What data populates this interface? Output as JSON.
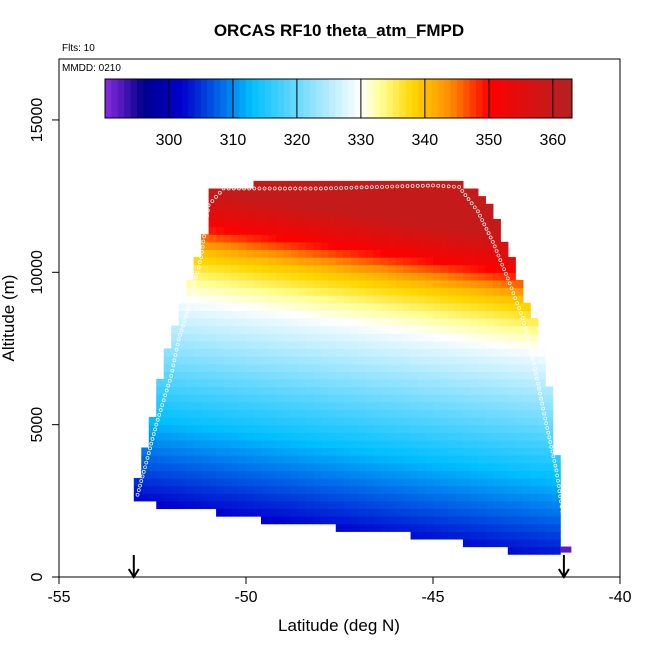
{
  "chart_data": {
    "type": "heatmap",
    "title": "ORCAS RF10 theta_atm_FMPD",
    "xlabel": "Latitude (deg N)",
    "ylabel": "Altitude (m)",
    "xlim": [
      -55,
      -40
    ],
    "ylim": [
      0,
      17000
    ],
    "x_ticks": [
      -55,
      -50,
      -45,
      -40
    ],
    "y_ticks": [
      0,
      5000,
      10000,
      15000
    ],
    "annotations": {
      "flights": "Flts: 10",
      "date": "MMDD: 0210"
    },
    "colorbar": {
      "range": [
        290,
        363
      ],
      "ticks": [
        300,
        310,
        320,
        330,
        340,
        350,
        360
      ],
      "colors": [
        "#8a2be2",
        "#00008b",
        "#0000cd",
        "#00bfff",
        "#ffffff",
        "#ffff99",
        "#ffd700",
        "#ff8c00",
        "#ff0000",
        "#b22222"
      ],
      "color_stops": [
        290,
        296,
        302,
        313,
        330,
        333,
        338,
        344,
        350,
        363
      ]
    },
    "curtain": {
      "theta_profile_altitude_m": [
        0,
        1000,
        2000,
        3000,
        4000,
        5000,
        6000,
        7000,
        8000,
        9000,
        10000,
        11000,
        12000,
        13000
      ],
      "theta_profile_K": [
        292,
        297,
        300,
        304,
        308,
        312,
        316,
        320,
        324,
        328,
        333,
        340,
        352,
        360
      ],
      "tilt_m_per_deg_lat": 180,
      "top_edge": {
        "lat": [
          -51.1,
          -50.9,
          -49.2,
          -44.4,
          -43.6,
          -43.2,
          -42.9,
          -42.7,
          -42.3,
          -42.0,
          -41.8,
          -41.7,
          -41.6,
          -41.6
        ],
        "alt": [
          11200,
          12600,
          12850,
          12850,
          12300,
          11300,
          10300,
          9700,
          8300,
          6800,
          5300,
          4000,
          2800,
          1000
        ]
      },
      "left_edge": {
        "lat": [
          -53.0,
          -52.8,
          -52.5,
          -52.2,
          -52.0,
          -51.7,
          -51.4,
          -51.1,
          -51.0
        ],
        "alt": [
          2600,
          3700,
          5200,
          6900,
          7800,
          9000,
          10000,
          11200,
          12600
        ]
      },
      "bottom_edge": {
        "lat": [
          -53.0,
          -51.0,
          -49.5,
          -47.9,
          -46.3,
          -44.8,
          -43.0,
          -41.5
        ],
        "alt": [
          2600,
          2300,
          2000,
          1800,
          1600,
          1400,
          1000,
          900
        ]
      },
      "flight_path": {
        "lat": [
          -52.9,
          -52.7,
          -52.4,
          -52.0,
          -51.8,
          -51.5,
          -51.2,
          -51.0,
          -50.6,
          -48.0,
          -45.0,
          -44.3,
          -43.8,
          -43.4,
          -43.0,
          -42.6,
          -42.3,
          -42.0,
          -41.7,
          -41.5
        ],
        "alt": [
          2700,
          3600,
          5000,
          6600,
          7800,
          9000,
          10500,
          12200,
          12750,
          12750,
          12850,
          12800,
          12000,
          11000,
          9800,
          8500,
          7000,
          5200,
          3500,
          1800
        ]
      }
    },
    "markers": [
      {
        "type": "arrow-down",
        "lat": -53.0
      },
      {
        "type": "arrow-down",
        "lat": -41.5
      }
    ]
  }
}
